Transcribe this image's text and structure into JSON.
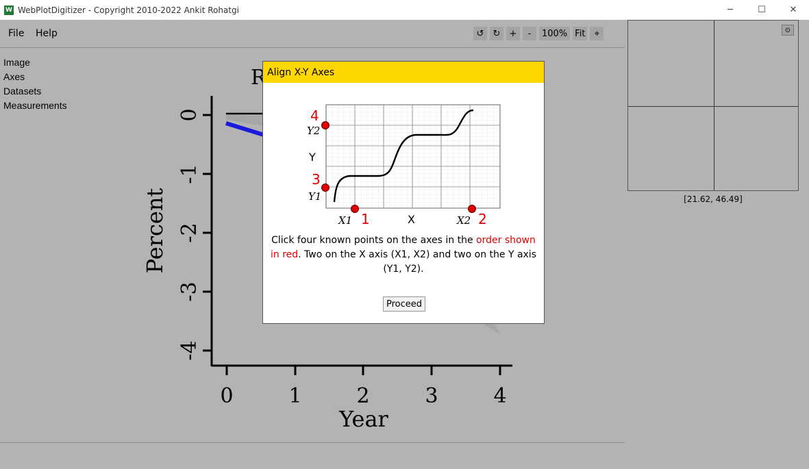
{
  "window": {
    "title": "WebPlotDigitizer - Copyright 2010-2022 Ankit Rohatgi",
    "app_icon_glyph": "W",
    "minimize": "─",
    "maximize": "☐",
    "close": "✕"
  },
  "menu": {
    "file": "File",
    "help": "Help"
  },
  "toolbar": {
    "rotate_ccw": "↺",
    "rotate_cw": "↻",
    "zoom_in": "+",
    "zoom_out": "-",
    "zoom_level": "100%",
    "fit": "Fit",
    "crosshair": "⌖"
  },
  "sidenav": [
    "Image",
    "Axes",
    "Datasets",
    "Measurements"
  ],
  "plot": {
    "title_fragment": "R",
    "ylabel": "Percent",
    "xlabel": "Year",
    "yticks": [
      "0",
      "-1",
      "-2",
      "-3",
      "-4"
    ],
    "xticks": [
      "0",
      "1",
      "2",
      "3",
      "4"
    ],
    "series_color": "#1a1adc"
  },
  "magnifier": {
    "coords": "[21.62, 46.49]",
    "settings_icon": "⊙"
  },
  "dialog": {
    "title": "Align X-Y Axes",
    "figure": {
      "y_axis_label": "Y",
      "x_axis_label": "X",
      "y2_label": "Y2",
      "y1_label": "Y1",
      "x1_label": "X1",
      "x2_label": "X2",
      "num_1": "1",
      "num_2": "2",
      "num_3": "3",
      "num_4": "4"
    },
    "description_part1": "Click four known points on the axes in the ",
    "description_highlight": "order shown in red",
    "description_part2": ". Two on the X axis (X1, X2) and two on the Y axis (Y1, Y2).",
    "proceed_label": "Proceed"
  }
}
